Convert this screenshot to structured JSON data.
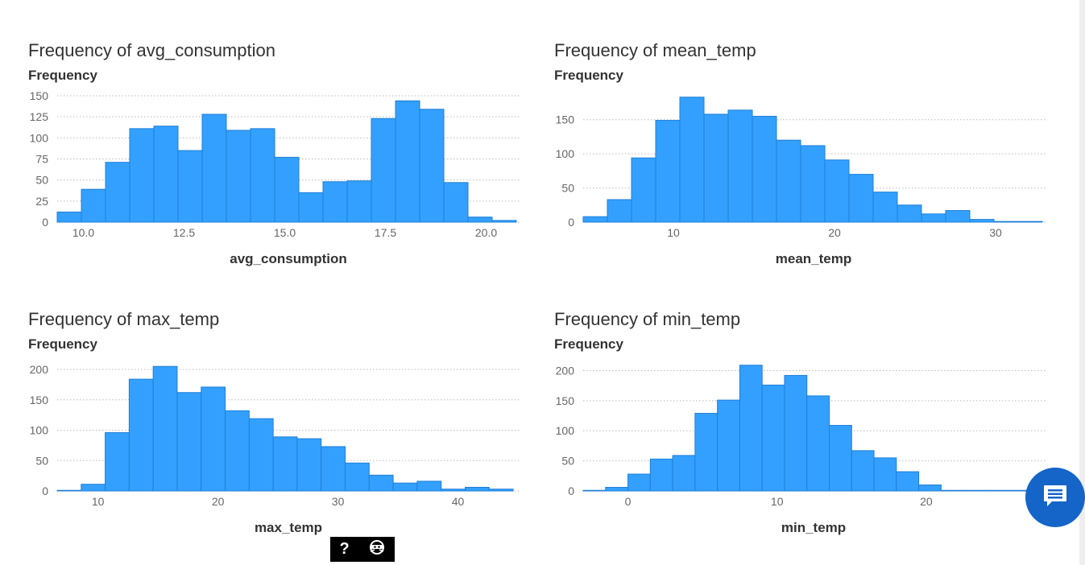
{
  "chart_data": [
    {
      "type": "bar",
      "title": "Frequency of avg_consumption",
      "ylabel": "Frequency",
      "xlabel": "avg_consumption",
      "xlim": [
        9.35,
        20.85
      ],
      "ylim": [
        0,
        150
      ],
      "yticks": [
        0,
        25,
        50,
        75,
        100,
        125,
        150
      ],
      "xticks": [
        10.0,
        12.5,
        15.0,
        17.5,
        20.0
      ],
      "xtick_labels": [
        "10.0",
        "12.5",
        "15.0",
        "17.5",
        "20.0"
      ],
      "bin_edges": [
        9.35,
        9.95,
        10.55,
        11.15,
        11.75,
        12.35,
        12.95,
        13.55,
        14.15,
        14.75,
        15.35,
        15.95,
        16.55,
        17.15,
        17.75,
        18.35,
        18.95,
        19.55,
        20.15,
        20.75
      ],
      "values": [
        12,
        39,
        71,
        111,
        114,
        85,
        128,
        109,
        111,
        77,
        35,
        48,
        49,
        123,
        144,
        134,
        47,
        6,
        2
      ],
      "grid": true
    },
    {
      "type": "bar",
      "title": "Frequency of mean_temp",
      "ylabel": "Frequency",
      "xlabel": "mean_temp",
      "xlim": [
        4.4,
        33.1
      ],
      "ylim": [
        0,
        185
      ],
      "yticks": [
        0,
        50,
        100,
        150
      ],
      "xticks": [
        10,
        20,
        30
      ],
      "xtick_labels": [
        "10",
        "20",
        "30"
      ],
      "bin_edges": [
        4.4,
        5.9,
        7.4,
        8.9,
        10.4,
        11.9,
        13.4,
        14.9,
        16.4,
        17.9,
        19.4,
        20.9,
        22.4,
        23.9,
        25.4,
        26.9,
        28.4,
        29.9,
        31.4,
        32.9
      ],
      "values": [
        8,
        33,
        94,
        149,
        183,
        158,
        164,
        155,
        120,
        112,
        91,
        70,
        44,
        25,
        12,
        17,
        4,
        1,
        1
      ],
      "grid": true
    },
    {
      "type": "bar",
      "title": "Frequency of max_temp",
      "ylabel": "Frequency",
      "xlabel": "max_temp",
      "xlim": [
        6.6,
        45.2
      ],
      "ylim": [
        0,
        208
      ],
      "yticks": [
        0,
        50,
        100,
        150,
        200
      ],
      "xticks": [
        10,
        20,
        30,
        40
      ],
      "xtick_labels": [
        "10",
        "20",
        "30",
        "40"
      ],
      "bin_edges": [
        6.6,
        8.6,
        10.6,
        12.6,
        14.6,
        16.6,
        18.6,
        20.6,
        22.6,
        24.6,
        26.6,
        28.6,
        30.6,
        32.6,
        34.6,
        36.6,
        38.6,
        40.6,
        42.6,
        44.6
      ],
      "values": [
        1,
        11,
        96,
        184,
        205,
        162,
        171,
        132,
        119,
        89,
        86,
        73,
        46,
        26,
        13,
        16,
        3,
        6,
        3
      ],
      "grid": true
    },
    {
      "type": "bar",
      "title": "Frequency of min_temp",
      "ylabel": "Frequency",
      "xlabel": "min_temp",
      "xlim": [
        -3.0,
        28.0
      ],
      "ylim": [
        0,
        210
      ],
      "yticks": [
        0,
        50,
        100,
        150,
        200
      ],
      "xticks": [
        0,
        10,
        20
      ],
      "xtick_labels": [
        "0",
        "10",
        "20"
      ],
      "bin_edges": [
        -3.0,
        -1.5,
        0.0,
        1.5,
        3.0,
        4.5,
        6.0,
        7.5,
        9.0,
        10.5,
        12.0,
        13.5,
        15.0,
        16.5,
        18.0,
        19.5,
        21.0,
        22.5,
        24.0,
        25.5,
        27.0
      ],
      "values": [
        1,
        6,
        28,
        53,
        59,
        129,
        151,
        209,
        176,
        192,
        158,
        109,
        67,
        55,
        32,
        10,
        1,
        1,
        1,
        1
      ],
      "grid": true
    }
  ],
  "colors": {
    "bar": "#33a0ff",
    "bar_stroke": "#1f7fd6",
    "grid": "#bbbbbb",
    "chat_button": "#1565c8"
  },
  "help_bar": {
    "help_label": "?",
    "icon": "ninja-icon"
  },
  "chat": {
    "icon": "chat-bubble-icon"
  }
}
